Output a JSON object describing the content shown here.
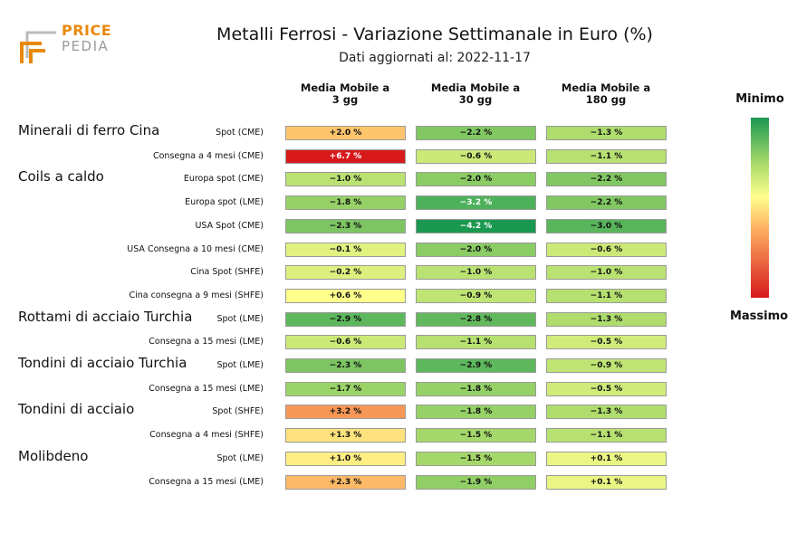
{
  "header": {
    "title": "Metalli Ferrosi - Variazione Settimanale in Euro (%)",
    "subtitle": "Dati aggiornati al: 2022-11-17",
    "logo_line1": "PRICE",
    "logo_line2": "PEDIA"
  },
  "colorbar": {
    "top_label": "Minimo",
    "bottom_label": "Massimo",
    "colors": [
      "#1a9850",
      "#a6d96a",
      "#ffff8c",
      "#fdae61",
      "#d7191c"
    ]
  },
  "chart_data": {
    "type": "heatmap",
    "title": "Metalli Ferrosi - Variazione Settimanale in Euro (%)",
    "columns": [
      "Media Mobile a\n3 gg",
      "Media Mobile a\n30 gg",
      "Media Mobile a\n180 gg"
    ],
    "groups": [
      "Minerali di ferro Cina",
      "Coils a caldo",
      "Rottami di acciaio Turchia",
      "Tondini di acciaio Turchia",
      "Tondini di acciaio",
      "Molibdeno"
    ],
    "rows": [
      {
        "group": 0,
        "label": "Spot (CME)",
        "values": [
          2.0,
          -2.2,
          -1.3
        ],
        "text": [
          "+2.0 %",
          "−2.2 %",
          "−1.3 %"
        ]
      },
      {
        "group": null,
        "label": "Consegna a 4 mesi (CME)",
        "values": [
          6.7,
          -0.6,
          -1.1
        ],
        "text": [
          "+6.7 %",
          "−0.6 %",
          "−1.1 %"
        ]
      },
      {
        "group": 1,
        "label": "Europa spot (CME)",
        "values": [
          -1.0,
          -2.0,
          -2.2
        ],
        "text": [
          "−1.0 %",
          "−2.0 %",
          "−2.2 %"
        ]
      },
      {
        "group": null,
        "label": "Europa spot (LME)",
        "values": [
          -1.8,
          -3.2,
          -2.2
        ],
        "text": [
          "−1.8 %",
          "−3.2 %",
          "−2.2 %"
        ]
      },
      {
        "group": null,
        "label": "USA Spot (CME)",
        "values": [
          -2.3,
          -4.2,
          -3.0
        ],
        "text": [
          "−2.3 %",
          "−4.2 %",
          "−3.0 %"
        ]
      },
      {
        "group": null,
        "label": "USA Consegna a 10 mesi (CME)",
        "values": [
          -0.1,
          -2.0,
          -0.6
        ],
        "text": [
          "−0.1 %",
          "−2.0 %",
          "−0.6 %"
        ]
      },
      {
        "group": null,
        "label": "Cina Spot (SHFE)",
        "values": [
          -0.2,
          -1.0,
          -1.0
        ],
        "text": [
          "−0.2 %",
          "−1.0 %",
          "−1.0 %"
        ]
      },
      {
        "group": null,
        "label": "Cina consegna a 9 mesi (SHFE)",
        "values": [
          0.6,
          -0.9,
          -1.1
        ],
        "text": [
          "+0.6 %",
          "−0.9 %",
          "−1.1 %"
        ]
      },
      {
        "group": 2,
        "label": "Spot (LME)",
        "values": [
          -2.9,
          -2.8,
          -1.3
        ],
        "text": [
          "−2.9 %",
          "−2.8 %",
          "−1.3 %"
        ]
      },
      {
        "group": null,
        "label": "Consegna a 15 mesi (LME)",
        "values": [
          -0.6,
          -1.1,
          -0.5
        ],
        "text": [
          "−0.6 %",
          "−1.1 %",
          "−0.5 %"
        ]
      },
      {
        "group": 3,
        "label": "Spot (LME)",
        "values": [
          -2.3,
          -2.9,
          -0.9
        ],
        "text": [
          "−2.3 %",
          "−2.9 %",
          "−0.9 %"
        ]
      },
      {
        "group": null,
        "label": "Consegna a 15 mesi (LME)",
        "values": [
          -1.7,
          -1.8,
          -0.5
        ],
        "text": [
          "−1.7 %",
          "−1.8 %",
          "−0.5 %"
        ]
      },
      {
        "group": 4,
        "label": "Spot (SHFE)",
        "values": [
          3.2,
          -1.8,
          -1.3
        ],
        "text": [
          "+3.2 %",
          "−1.8 %",
          "−1.3 %"
        ]
      },
      {
        "group": null,
        "label": "Consegna a 4 mesi (SHFE)",
        "values": [
          1.3,
          -1.5,
          -1.1
        ],
        "text": [
          "+1.3 %",
          "−1.5 %",
          "−1.1 %"
        ]
      },
      {
        "group": 5,
        "label": "Spot (LME)",
        "values": [
          1.0,
          -1.5,
          0.1
        ],
        "text": [
          "+1.0 %",
          "−1.5 %",
          "+0.1 %"
        ]
      },
      {
        "group": null,
        "label": "Consegna a 15 mesi (LME)",
        "values": [
          2.3,
          -1.9,
          0.1
        ],
        "text": [
          "+2.3 %",
          "−1.9 %",
          "+0.1 %"
        ]
      }
    ],
    "value_range": [
      -4.2,
      6.7
    ]
  }
}
